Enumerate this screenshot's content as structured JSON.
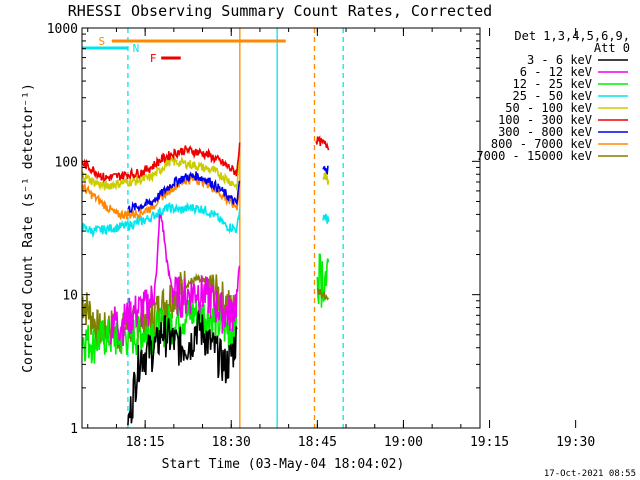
{
  "chart_data": {
    "type": "line",
    "title": "RHESSI Observing Summary Count Rates, Corrected",
    "xlabel": "Start Time (03-May-04 18:04:02)",
    "ylabel": "Corrected Count Rate (s⁻¹ detector⁻¹)",
    "y_scale": "log",
    "ylim": [
      1,
      1000
    ],
    "y_ticks": [
      "1",
      "10",
      "100",
      "1000"
    ],
    "x_ticks": [
      "18:15",
      "18:30",
      "18:45",
      "19:00",
      "19:15",
      "19:30"
    ],
    "x_range_minutes": [
      4.0,
      47.0
    ],
    "timestamp": "17-Oct-2021 08:55",
    "legend": {
      "position": "top-right",
      "header": [
        "Det 1,3,4,5,6,9,",
        "Att 0"
      ]
    },
    "flags": [
      {
        "label": "N",
        "color": "#00e5ee",
        "start": 4.0,
        "end": 12.0
      },
      {
        "label": "F",
        "color": "#ee0000",
        "start": 17.8,
        "end": 21.2
      },
      {
        "label": "S",
        "color": "#ff8800",
        "start": 9.2,
        "end": 39.5
      }
    ],
    "vlines": [
      {
        "x": 12.0,
        "color": "#00e5ee",
        "dash": true
      },
      {
        "x": 31.5,
        "color": "#ff8800",
        "dash": false
      },
      {
        "x": 38.0,
        "color": "#00e5ee",
        "dash": false
      },
      {
        "x": 44.5,
        "color": "#ff8800",
        "dash": true
      },
      {
        "x": 49.5,
        "color": "#00e5ee",
        "dash": true
      }
    ],
    "series": [
      {
        "name": "3 - 6 keV",
        "color": "#000000",
        "x": [
          12.0,
          13.0,
          14.0,
          15.5,
          17.0,
          18.0,
          19.0,
          20.0,
          21.5,
          23.0,
          24.0,
          25.0,
          26.0,
          27.0,
          28.0,
          29.0,
          30.0,
          31.0
        ],
        "y": [
          1.0,
          2.0,
          3.5,
          3.8,
          4.2,
          5.5,
          5.0,
          4.5,
          4.2,
          4.5,
          6.0,
          5.5,
          4.5,
          4.0,
          3.5,
          3.0,
          3.5,
          5.0
        ]
      },
      {
        "name": "6 - 12 keV",
        "color": "#ee00ee",
        "x": [
          9.0,
          10.0,
          11.0,
          12.0,
          13.0,
          14.0,
          15.0,
          16.0,
          17.0,
          17.5,
          18.0,
          19.0,
          20.0,
          21.0,
          22.0,
          23.0,
          24.0,
          25.0,
          26.0,
          27.0,
          28.0,
          29.0,
          30.0,
          31.0,
          31.5
        ],
        "y": [
          6.5,
          6.3,
          6.2,
          7.0,
          7.5,
          7.8,
          8.2,
          9.0,
          14.0,
          40.0,
          35.0,
          15.0,
          10.5,
          10.2,
          10.0,
          10.5,
          11.0,
          10.5,
          10.0,
          9.0,
          8.0,
          7.5,
          7.5,
          9.5,
          18.0
        ]
      },
      {
        "name": "12 - 25 keV",
        "color": "#00ee00",
        "x": [
          4.0,
          6.0,
          8.0,
          10.0,
          12.0,
          14.0,
          16.0,
          18.0,
          20.0,
          22.0,
          24.0,
          26.0,
          28.0,
          30.0,
          31.0
        ],
        "y": [
          4.8,
          4.5,
          5.0,
          4.8,
          5.0,
          5.2,
          5.5,
          6.0,
          6.5,
          7.0,
          7.5,
          7.0,
          6.0,
          5.5,
          5.5
        ]
      },
      {
        "name": "25 - 50 keV",
        "color": "#00e5ee",
        "x": [
          4.0,
          6.0,
          8.0,
          10.0,
          12.0,
          14.0,
          16.0,
          17.5,
          19.0,
          21.0,
          23.0,
          25.0,
          27.0,
          29.0,
          31.0,
          31.5
        ],
        "y": [
          32.0,
          30.0,
          31.0,
          32.0,
          33.0,
          35.0,
          38.0,
          42.0,
          45.0,
          43.0,
          45.0,
          44.0,
          40.0,
          33.0,
          31.0,
          45.0
        ]
      },
      {
        "name": "50 - 100 keV",
        "color": "#cccc00",
        "x": [
          4.0,
          6.0,
          8.0,
          10.0,
          12.0,
          14.0,
          16.0,
          17.5,
          19.0,
          21.0,
          23.0,
          25.0,
          27.0,
          29.0,
          31.0,
          31.5
        ],
        "y": [
          80.0,
          70.0,
          65.0,
          68.0,
          70.0,
          72.0,
          76.0,
          85.0,
          100.0,
          98.0,
          95.0,
          90.0,
          85.0,
          75.0,
          65.0,
          110.0
        ]
      },
      {
        "name": "100 - 300 keV",
        "color": "#ee0000",
        "x": [
          4.0,
          6.0,
          8.0,
          10.0,
          12.0,
          14.0,
          16.0,
          18.0,
          20.0,
          22.0,
          24.0,
          26.0,
          28.0,
          30.0,
          31.0,
          31.5
        ],
        "y": [
          98.0,
          86.0,
          75.0,
          77.0,
          80.0,
          82.0,
          90.0,
          105.0,
          115.0,
          122.0,
          118.0,
          112.0,
          100.0,
          88.0,
          82.0,
          145.0
        ]
      },
      {
        "name": "300 - 800 keV",
        "color": "#0000ee",
        "x": [
          12.0,
          14.0,
          16.0,
          18.0,
          20.0,
          22.0,
          24.0,
          26.0,
          28.0,
          30.0,
          31.0,
          31.5
        ],
        "y": [
          44.0,
          46.0,
          49.0,
          58.0,
          70.0,
          76.0,
          78.0,
          72.0,
          62.0,
          52.0,
          48.0,
          75.0
        ]
      },
      {
        "name": "800 - 7000 keV",
        "color": "#ff8800",
        "x": [
          4.0,
          6.0,
          8.0,
          10.0,
          12.0,
          14.0,
          16.0,
          18.0,
          20.0,
          22.0,
          24.0,
          26.0,
          28.0,
          30.0,
          31.0,
          31.5
        ],
        "y": [
          65.0,
          55.0,
          47.0,
          40.0,
          40.0,
          41.0,
          45.0,
          55.0,
          65.0,
          72.0,
          74.0,
          68.0,
          58.0,
          48.0,
          46.0,
          70.0
        ]
      },
      {
        "name": "7000 - 15000 keV",
        "color": "#808000",
        "x": [
          4.0,
          5.0,
          6.0,
          7.0,
          8.0,
          9.0,
          10.0,
          12.0,
          14.0,
          16.0,
          18.0,
          20.0,
          22.0,
          24.0,
          26.0,
          28.0,
          30.0,
          31.0
        ],
        "y": [
          9.5,
          8.0,
          6.5,
          5.5,
          5.5,
          6.0,
          5.2,
          5.8,
          6.5,
          7.0,
          8.5,
          10.5,
          12.0,
          13.0,
          12.0,
          10.0,
          8.0,
          7.5
        ]
      }
    ]
  }
}
